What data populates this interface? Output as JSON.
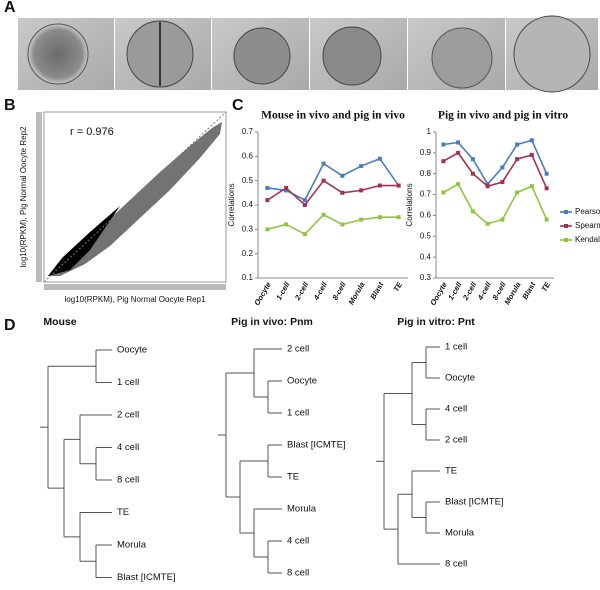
{
  "panel_labels": [
    "A",
    "B",
    "C",
    "D"
  ],
  "chart_data": [
    {
      "type": "scatter",
      "annotation": "r = 0.976",
      "xlabel": "log10(RPKM),  Pig Normal Oocyte Rep1",
      "ylabel": "log10(RPKM),  Pig Normal Oocyte Rep2"
    },
    {
      "type": "line",
      "title": "Mouse in vivo and pig in vivo",
      "ylabel": "Correlations",
      "categories": [
        "Oocyte",
        "1-cell",
        "2-cell",
        "4-cell",
        "8-cell",
        "Morula",
        "Blast",
        "TE"
      ],
      "series": [
        {
          "color": "#4a7cc4",
          "values": [
            0.47,
            0.46,
            0.42,
            0.57,
            0.52,
            0.56,
            0.59,
            0.48
          ]
        },
        {
          "color": "#a3304e",
          "values": [
            0.42,
            0.47,
            0.4,
            0.5,
            0.45,
            0.46,
            0.48,
            0.48
          ]
        },
        {
          "color": "#8dc63f",
          "values": [
            0.3,
            0.32,
            0.28,
            0.36,
            0.32,
            0.34,
            0.35,
            0.35
          ]
        }
      ],
      "ylim": [
        0.1,
        0.7
      ],
      "yticks": [
        0.1,
        0.2,
        0.3,
        0.4,
        0.5,
        0.6,
        0.7
      ]
    },
    {
      "type": "line",
      "title": "Pig in vivo and pig in vitro",
      "ylabel": "Correlations",
      "categories": [
        "Oocyte",
        "1-cell",
        "2-cell",
        "4-cell",
        "8-cell",
        "Morula",
        "Blast",
        "TE"
      ],
      "series": [
        {
          "name": "Pearson",
          "color": "#4a7cc4",
          "values": [
            0.94,
            0.95,
            0.87,
            0.75,
            0.83,
            0.94,
            0.96,
            0.8
          ]
        },
        {
          "name": "Spearman",
          "color": "#a3304e",
          "values": [
            0.86,
            0.9,
            0.8,
            0.74,
            0.76,
            0.87,
            0.89,
            0.73
          ]
        },
        {
          "name": "Kendall",
          "color": "#8dc63f",
          "values": [
            0.71,
            0.75,
            0.62,
            0.56,
            0.58,
            0.71,
            0.74,
            0.58
          ]
        }
      ],
      "ylim": [
        0.3,
        1
      ],
      "yticks": [
        0.3,
        0.4,
        0.5,
        0.6,
        0.7,
        0.8,
        0.9,
        1
      ]
    }
  ],
  "dendrograms": [
    {
      "title": "Mouse",
      "leaves": [
        "Oocyte",
        "1 cell",
        "2 cell",
        "4 cell",
        "8 cell",
        "TE",
        "Morula",
        "Blast [ICMTE]"
      ]
    },
    {
      "title": "Pig in vivo: Pnm",
      "leaves": [
        "2 cell",
        "Oocyte",
        "1 cell",
        "Blast [ICMTE]",
        "TE",
        "Morula",
        "4 cell",
        "8 cell"
      ]
    },
    {
      "title": "Pig in vitro: Pnt",
      "leaves": [
        "1 cell",
        "Oocyte",
        "4 cell",
        "2 cell",
        "TE",
        "Blast [ICMTE]",
        "Morula",
        "8 cell"
      ]
    }
  ]
}
